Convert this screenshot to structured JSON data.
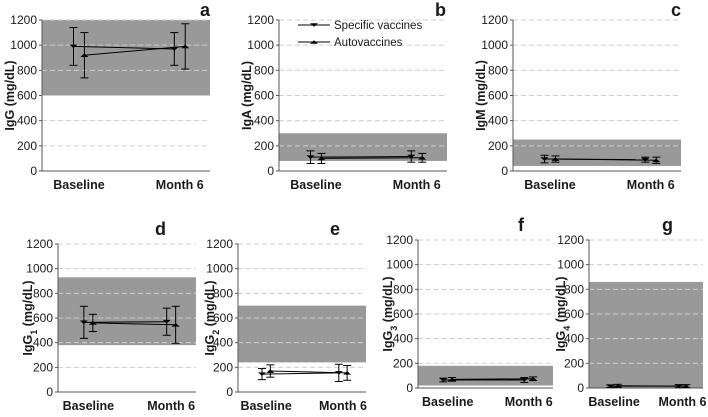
{
  "figure": {
    "background": "#ffffff",
    "band_color": "#999999",
    "line_color": "#000000",
    "grid_color": "#cfcfcf"
  },
  "legend": {
    "specific_label": "Specific vaccines",
    "auto_label": "Autovaccines"
  },
  "chart_data": [
    {
      "type": "line",
      "panel": "a",
      "ylabel": "IgG (mg/dL)",
      "ylim": [
        0,
        1200
      ],
      "yticks": [
        0,
        200,
        400,
        600,
        800,
        1000,
        1200
      ],
      "categories": [
        "Baseline",
        "Month 6"
      ],
      "reference_range": [
        600,
        1200
      ],
      "series": [
        {
          "name": "Specific vaccines",
          "values": [
            990,
            970
          ],
          "errors": [
            150,
            130
          ]
        },
        {
          "name": "Autovaccines",
          "values": [
            920,
            990
          ],
          "errors": [
            180,
            180
          ]
        }
      ]
    },
    {
      "type": "line",
      "panel": "b",
      "ylabel": "IgA (mg/dL)",
      "ylim": [
        0,
        1200
      ],
      "yticks": [
        0,
        200,
        400,
        600,
        800,
        1000,
        1200
      ],
      "categories": [
        "Baseline",
        "Month 6"
      ],
      "reference_range": [
        80,
        300
      ],
      "series": [
        {
          "name": "Specific vaccines",
          "values": [
            110,
            115
          ],
          "errors": [
            50,
            45
          ]
        },
        {
          "name": "Autovaccines",
          "values": [
            100,
            105
          ],
          "errors": [
            40,
            35
          ]
        }
      ]
    },
    {
      "type": "line",
      "panel": "c",
      "ylabel": "IgM (mg/dL)",
      "ylim": [
        0,
        1200
      ],
      "yticks": [
        0,
        200,
        400,
        600,
        800,
        1000,
        1200
      ],
      "categories": [
        "Baseline",
        "Month 6"
      ],
      "reference_range": [
        40,
        250
      ],
      "series": [
        {
          "name": "Specific vaccines",
          "values": [
            95,
            90
          ],
          "errors": [
            30,
            20
          ]
        },
        {
          "name": "Autovaccines",
          "values": [
            95,
            85
          ],
          "errors": [
            25,
            25
          ]
        }
      ]
    },
    {
      "type": "line",
      "panel": "d",
      "ylabel": "IgG1 (mg/dL)",
      "ylim": [
        0,
        1200
      ],
      "yticks": [
        0,
        200,
        400,
        600,
        800,
        1000,
        1200
      ],
      "categories": [
        "Baseline",
        "Month 6"
      ],
      "reference_range": [
        380,
        930
      ],
      "series": [
        {
          "name": "Specific vaccines",
          "values": [
            565,
            570
          ],
          "errors": [
            130,
            110
          ]
        },
        {
          "name": "Autovaccines",
          "values": [
            560,
            545
          ],
          "errors": [
            70,
            150
          ]
        }
      ]
    },
    {
      "type": "line",
      "panel": "e",
      "ylabel": "IgG2 (mg/dL)",
      "ylim": [
        0,
        1200
      ],
      "yticks": [
        0,
        200,
        400,
        600,
        800,
        1000,
        1200
      ],
      "categories": [
        "Baseline",
        "Month 6"
      ],
      "reference_range": [
        240,
        700
      ],
      "series": [
        {
          "name": "Specific vaccines",
          "values": [
            145,
            155
          ],
          "errors": [
            45,
            70
          ]
        },
        {
          "name": "Autovaccines",
          "values": [
            170,
            155
          ],
          "errors": [
            50,
            60
          ]
        }
      ]
    },
    {
      "type": "line",
      "panel": "f",
      "ylabel": "IgG3 (mg/dL)",
      "ylim": [
        0,
        1200
      ],
      "yticks": [
        0,
        200,
        400,
        600,
        800,
        1000,
        1200
      ],
      "categories": [
        "Baseline",
        "Month 6"
      ],
      "reference_range": [
        20,
        180
      ],
      "series": [
        {
          "name": "Specific vaccines",
          "values": [
            65,
            65
          ],
          "errors": [
            15,
            20
          ]
        },
        {
          "name": "Autovaccines",
          "values": [
            70,
            75
          ],
          "errors": [
            15,
            15
          ]
        }
      ]
    },
    {
      "type": "line",
      "panel": "g",
      "ylabel": "IgG4 (mg/dL)",
      "ylim": [
        0,
        1200
      ],
      "yticks": [
        0,
        200,
        400,
        600,
        800,
        1000,
        1200
      ],
      "categories": [
        "Baseline",
        "Month 6"
      ],
      "reference_range": [
        0,
        860
      ],
      "series": [
        {
          "name": "Specific vaccines",
          "values": [
            15,
            15
          ],
          "errors": [
            10,
            12
          ]
        },
        {
          "name": "Autovaccines",
          "values": [
            18,
            15
          ],
          "errors": [
            12,
            12
          ]
        }
      ]
    }
  ]
}
